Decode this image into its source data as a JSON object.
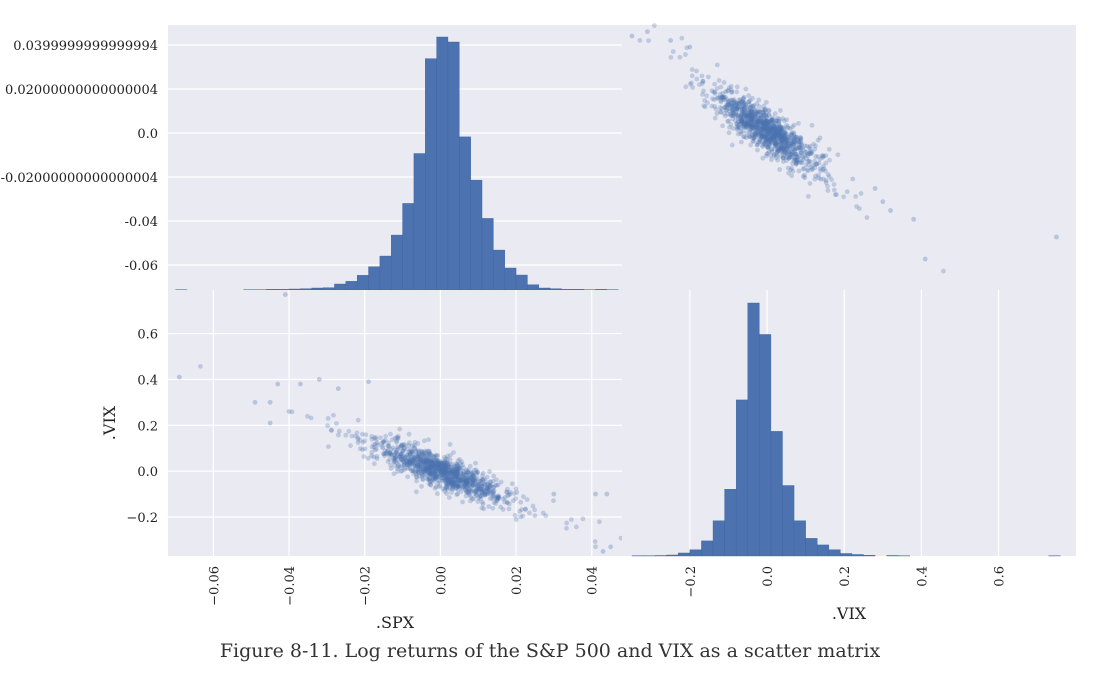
{
  "caption": "Figure 8-11. Log returns of the S&P 500 and VIX as a scatter matrix",
  "colors": {
    "panel": "#eaeaf2",
    "grid": "#ffffff",
    "bar": "#4c72b0",
    "point": "#4c72b0"
  },
  "chart_data": [
    {
      "type": "bar",
      "panel": "top-left",
      "title": "",
      "variable": ".SPX",
      "y_tick_labels": [
        "0.0399999999999994",
        "0.02000000000000004",
        "0.0",
        "-0.02000000000000004",
        "-0.04",
        "-0.06"
      ],
      "bins": [
        -0.07,
        -0.067,
        -0.064,
        -0.061,
        -0.058,
        -0.055,
        -0.052,
        -0.049,
        -0.046,
        -0.043,
        -0.04,
        -0.037,
        -0.034,
        -0.031,
        -0.028,
        -0.025,
        -0.022,
        -0.019,
        -0.016,
        -0.013,
        -0.01,
        -0.007,
        -0.004,
        -0.001,
        0.002,
        0.005,
        0.008,
        0.011,
        0.014,
        0.017,
        0.02,
        0.023,
        0.026,
        0.029,
        0.032,
        0.035,
        0.038,
        0.041,
        0.044,
        0.047
      ],
      "counts": [
        1,
        0,
        0,
        0,
        0,
        0,
        1,
        1,
        2,
        2,
        3,
        4,
        6,
        7,
        18,
        26,
        44,
        70,
        102,
        165,
        260,
        410,
        695,
        760,
        745,
        460,
        330,
        215,
        120,
        66,
        45,
        16,
        6,
        4,
        2,
        2,
        1,
        2,
        1
      ]
    },
    {
      "type": "scatter",
      "panel": "top-right",
      "x_variable": ".VIX",
      "y_variable": ".SPX",
      "x_range": [
        -0.35,
        0.78
      ],
      "y_range": [
        -0.072,
        0.048
      ],
      "relationship": {
        "slope": -0.11,
        "x_mean": 0.0,
        "x_sd": 0.07,
        "residual_sd": 0.0045
      },
      "outliers": [
        [
          -0.35,
          0.043
        ],
        [
          -0.31,
          0.045
        ],
        [
          -0.25,
          0.041
        ],
        [
          0.41,
          -0.058
        ],
        [
          0.75,
          -0.048
        ],
        [
          0.3,
          -0.032
        ],
        [
          0.38,
          -0.04
        ],
        [
          -0.2,
          0.038
        ],
        [
          0.32,
          -0.036
        ],
        [
          0.28,
          -0.026
        ]
      ]
    },
    {
      "type": "scatter",
      "panel": "bottom-left",
      "x_variable": ".SPX",
      "y_variable": ".VIX",
      "xlabel": ".SPX",
      "ylabel": ".VIX",
      "x_ticks": [
        -0.06,
        -0.04,
        -0.02,
        0.0,
        0.02,
        0.04
      ],
      "x_tick_labels": [
        "−0.06",
        "−0.04",
        "−0.02",
        "0.00",
        "0.02",
        "0.04"
      ],
      "y_ticks": [
        0.6,
        0.4,
        0.2,
        0.0,
        -0.2
      ],
      "y_tick_labels": [
        "0.6",
        "0.4",
        "0.2",
        "0.0",
        "−0.2"
      ],
      "x_range": [
        -0.072,
        0.048
      ],
      "y_range": [
        -0.37,
        0.79
      ],
      "relationship": {
        "slope": -6.5,
        "x_mean": 0.0,
        "x_sd": 0.009,
        "residual_sd": 0.035
      },
      "outliers": [
        [
          -0.069,
          0.41
        ],
        [
          -0.041,
          0.77
        ],
        [
          -0.049,
          0.3
        ],
        [
          -0.045,
          0.3
        ],
        [
          -0.043,
          0.38
        ],
        [
          -0.045,
          0.21
        ],
        [
          -0.04,
          0.26
        ],
        [
          -0.037,
          0.38
        ],
        [
          -0.032,
          0.4
        ],
        [
          0.041,
          -0.1
        ],
        [
          0.044,
          -0.1
        ],
        [
          0.045,
          -0.33
        ],
        [
          0.043,
          -0.35
        ],
        [
          0.03,
          -0.1
        ],
        [
          -0.019,
          0.39
        ],
        [
          -0.027,
          0.36
        ]
      ]
    },
    {
      "type": "bar",
      "panel": "bottom-right",
      "title": "",
      "variable": ".VIX",
      "xlabel": ".VIX",
      "x_ticks": [
        -0.2,
        0.0,
        0.2,
        0.4,
        0.6
      ],
      "x_tick_labels": [
        "−0.2",
        "0.0",
        "0.2",
        "0.4",
        "0.6"
      ],
      "bins": [
        -0.35,
        -0.32,
        -0.29,
        -0.26,
        -0.23,
        -0.2,
        -0.17,
        -0.14,
        -0.11,
        -0.08,
        -0.05,
        -0.02,
        0.01,
        0.04,
        0.07,
        0.1,
        0.13,
        0.16,
        0.19,
        0.22,
        0.25,
        0.28,
        0.31,
        0.34,
        0.37,
        0.4,
        0.43,
        0.46,
        0.49,
        0.52,
        0.55,
        0.58,
        0.61,
        0.64,
        0.67,
        0.7,
        0.73,
        0.76
      ],
      "counts": [
        1,
        1,
        2,
        4,
        12,
        25,
        60,
        140,
        265,
        620,
        1005,
        880,
        495,
        280,
        140,
        70,
        44,
        25,
        10,
        6,
        3,
        0,
        2,
        1,
        0,
        0,
        0,
        0,
        0,
        0,
        0,
        0,
        0,
        0,
        0,
        0,
        1
      ]
    }
  ]
}
